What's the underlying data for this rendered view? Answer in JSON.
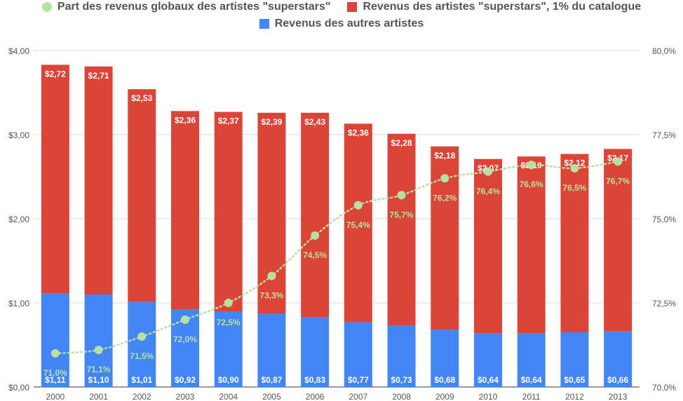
{
  "chart_data": {
    "type": "bar",
    "stacked": true,
    "categories": [
      "2000",
      "2001",
      "2002",
      "2003",
      "2004",
      "2005",
      "2006",
      "2007",
      "2008",
      "2009",
      "2010",
      "2011",
      "2012",
      "2013"
    ],
    "series": [
      {
        "name": "Revenus des autres artistes",
        "axis": "left",
        "color": "#4285f4",
        "values": [
          1.11,
          1.1,
          1.01,
          0.92,
          0.9,
          0.87,
          0.83,
          0.77,
          0.73,
          0.68,
          0.64,
          0.64,
          0.65,
          0.66
        ],
        "labels": [
          "$1,11",
          "$1,10",
          "$1,01",
          "$0,92",
          "$0,90",
          "$0,87",
          "$0,83",
          "$0,77",
          "$0,73",
          "$0,68",
          "$0,64",
          "$0,64",
          "$0,65",
          "$0,66"
        ]
      },
      {
        "name": "Revenus des artistes \"superstars\", 1% du catalogue",
        "axis": "left",
        "color": "#db4437",
        "values": [
          2.72,
          2.71,
          2.53,
          2.36,
          2.37,
          2.39,
          2.43,
          2.36,
          2.28,
          2.18,
          2.07,
          2.1,
          2.12,
          2.17
        ],
        "labels": [
          "$2,72",
          "$2,71",
          "$2,53",
          "$2,36",
          "$2,37",
          "$2,39",
          "$2,43",
          "$2,36",
          "$2,28",
          "$2,18",
          "$2,07",
          "$2,10",
          "$2,12",
          "$2,17"
        ]
      },
      {
        "name": "Part des revenus globaux des artistes \"superstars\"",
        "type": "line",
        "axis": "right",
        "color": "#b7e1a1",
        "values": [
          71.0,
          71.1,
          71.5,
          72.0,
          72.5,
          73.3,
          74.5,
          75.4,
          75.7,
          76.2,
          76.4,
          76.6,
          76.5,
          76.7
        ],
        "labels": [
          "71,0%",
          "71,1%",
          "71,5%",
          "72,0%",
          "72,5%",
          "73,3%",
          "74,5%",
          "75,4%",
          "75,7%",
          "76,2%",
          "76,4%",
          "76,6%",
          "76,5%",
          "76,7%"
        ]
      }
    ],
    "y_left": {
      "ylim": [
        0,
        4
      ],
      "ticks": [
        0,
        1,
        2,
        3,
        4
      ],
      "tick_labels": [
        "$0,00",
        "$1,00",
        "$2,00",
        "$3,00",
        "$4,00"
      ]
    },
    "y_right": {
      "ylim": [
        70,
        80
      ],
      "ticks": [
        70,
        72.5,
        75,
        77.5,
        80
      ],
      "tick_labels": [
        "70,0%",
        "72,5%",
        "75,0%",
        "77,5%",
        "80,0%"
      ]
    },
    "grid": true,
    "legend_position": "top"
  },
  "legend": {
    "row1": [
      {
        "label": "Part des revenus globaux des artistes \"superstars\"",
        "color": "#b7e1a1",
        "shape": "circle"
      },
      {
        "label": "Revenus des artistes \"superstars\", 1% du catalogue",
        "color": "#db4437",
        "shape": "square"
      }
    ],
    "row2": [
      {
        "label": "Revenus des autres artistes",
        "color": "#4285f4",
        "shape": "square"
      }
    ]
  }
}
